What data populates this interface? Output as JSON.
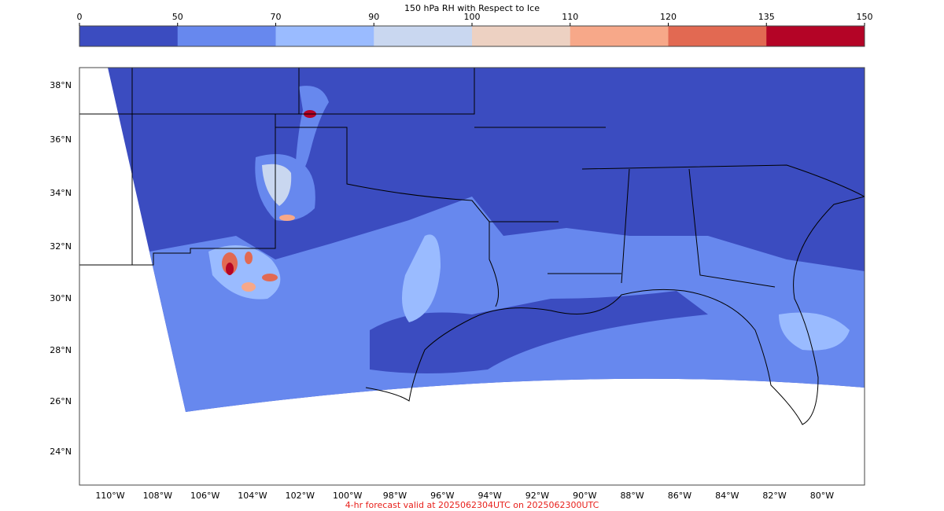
{
  "colorbar": {
    "title": "150 hPa RH with Respect to Ice",
    "ticks": [
      0,
      50,
      70,
      90,
      100,
      110,
      120,
      135,
      150
    ],
    "colors": [
      "#3b4cc0",
      "#6788ee",
      "#9abbff",
      "#c9d7f0",
      "#edd1c2",
      "#f7a889",
      "#e26952",
      "#b40426"
    ]
  },
  "map": {
    "lat_labels": [
      "38°N",
      "36°N",
      "34°N",
      "32°N",
      "30°N",
      "28°N",
      "26°N",
      "24°N"
    ],
    "lon_labels": [
      "110°W",
      "108°W",
      "106°W",
      "104°W",
      "102°W",
      "100°W",
      "98°W",
      "96°W",
      "94°W",
      "92°W",
      "90°W",
      "88°W",
      "86°W",
      "84°W",
      "82°W",
      "80°W"
    ]
  },
  "footer": "4-hr forecast valid at 2025062304UTC on 2025062300UTC"
}
